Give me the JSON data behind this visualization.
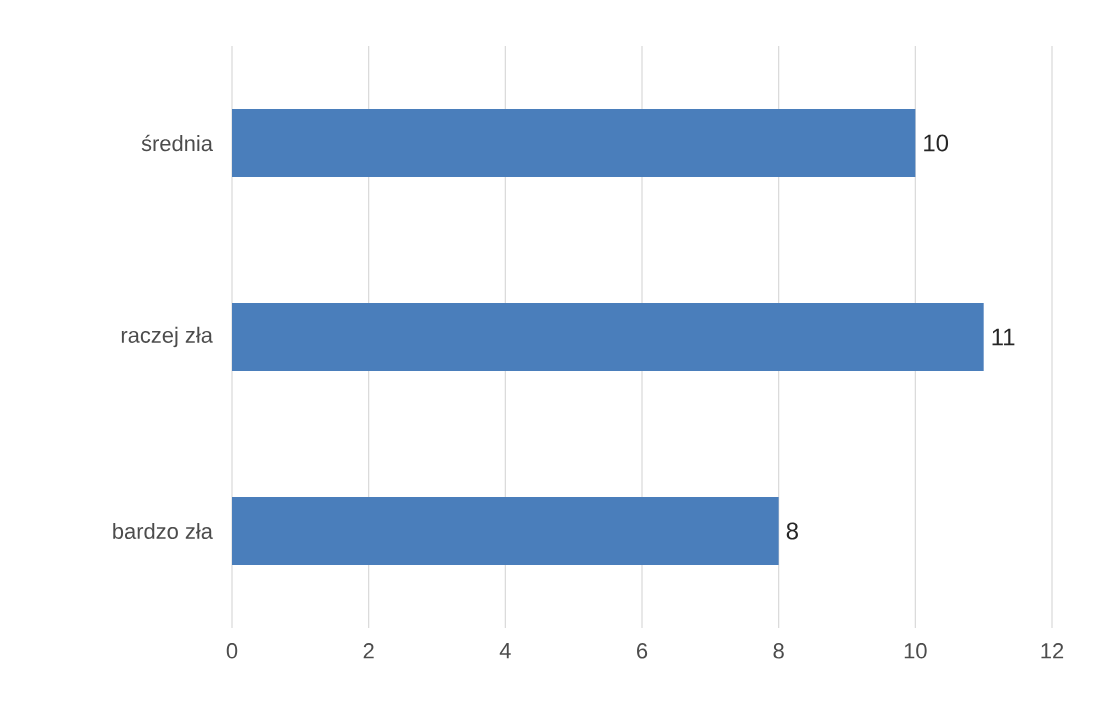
{
  "chart_data": {
    "type": "bar",
    "orientation": "horizontal",
    "categories": [
      "średnia",
      "raczej zła",
      "bardzo zła"
    ],
    "values": [
      10,
      11,
      8
    ],
    "color": "#4a7ebb",
    "xlim": [
      0,
      12
    ],
    "xticks": [
      0,
      2,
      4,
      6,
      8,
      10,
      12
    ],
    "grid": "x",
    "data_labels": true
  }
}
